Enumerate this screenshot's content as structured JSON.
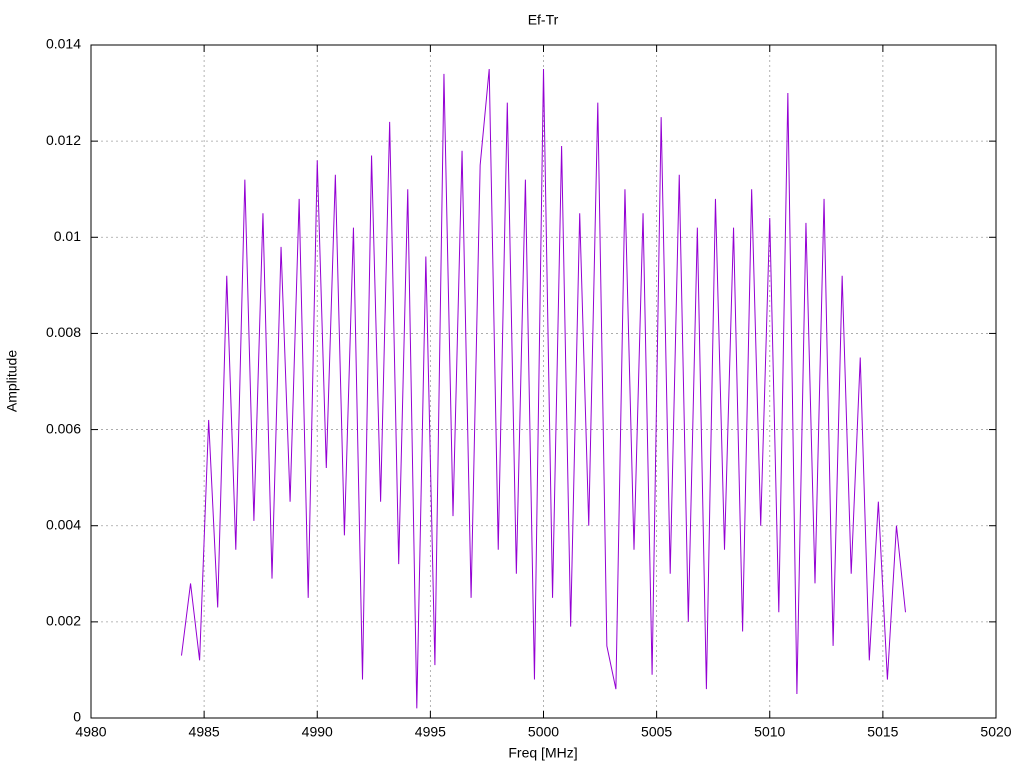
{
  "chart_data": {
    "type": "line",
    "title": "Ef-Tr",
    "x_label": "Freq [MHz]",
    "y_label": "Amplitude",
    "x": [
      4984.0,
      4984.4,
      4984.8,
      4985.2,
      4985.6,
      4986.0,
      4986.4,
      4986.8,
      4987.2,
      4987.6,
      4988.0,
      4988.4,
      4988.8,
      4989.2,
      4989.6,
      4990.0,
      4990.4,
      4990.8,
      4991.2,
      4991.6,
      4992.0,
      4992.4,
      4992.8,
      4993.2,
      4993.6,
      4994.0,
      4994.4,
      4994.8,
      4995.2,
      4995.6,
      4996.0,
      4996.4,
      4996.8,
      4997.2,
      4997.6,
      4998.0,
      4998.4,
      4998.8,
      4999.2,
      4999.6,
      5000.0,
      5000.4,
      5000.8,
      5001.2,
      5001.6,
      5002.0,
      5002.4,
      5002.8,
      5003.2,
      5003.6,
      5004.0,
      5004.4,
      5004.8,
      5005.2,
      5005.6,
      5006.0,
      5006.4,
      5006.8,
      5007.2,
      5007.6,
      5008.0,
      5008.4,
      5008.8,
      5009.2,
      5009.6,
      5010.0,
      5010.4,
      5010.8,
      5011.2,
      5011.6,
      5012.0,
      5012.4,
      5012.8,
      5013.2,
      5013.6,
      5014.0,
      5014.4,
      5014.8,
      5015.2,
      5015.6,
      5016.0
    ],
    "series": [
      {
        "color": "#9400d3",
        "values": [
          0.0013,
          0.0028,
          0.0012,
          0.0062,
          0.0023,
          0.0092,
          0.0035,
          0.0112,
          0.0041,
          0.0105,
          0.0029,
          0.0098,
          0.0045,
          0.0108,
          0.0025,
          0.0116,
          0.0052,
          0.0113,
          0.0038,
          0.0102,
          0.0008,
          0.0117,
          0.0045,
          0.0124,
          0.0032,
          0.011,
          0.0002,
          0.0096,
          0.0011,
          0.0134,
          0.0042,
          0.0118,
          0.0025,
          0.0115,
          0.0135,
          0.0035,
          0.0128,
          0.003,
          0.0112,
          0.0008,
          0.0135,
          0.0025,
          0.0119,
          0.0019,
          0.0105,
          0.004,
          0.0128,
          0.0015,
          0.0006,
          0.011,
          0.0035,
          0.0105,
          0.0009,
          0.0125,
          0.003,
          0.0113,
          0.002,
          0.0102,
          0.0006,
          0.0108,
          0.0035,
          0.0102,
          0.0018,
          0.011,
          0.004,
          0.0104,
          0.0022,
          0.013,
          0.0005,
          0.0103,
          0.0028,
          0.0108,
          0.0015,
          0.0092,
          0.003,
          0.0075,
          0.0012,
          0.0045,
          0.0008,
          0.004,
          0.0022
        ]
      }
    ],
    "xlim": [
      4980,
      5020
    ],
    "xticks": [
      4980,
      4985,
      4990,
      4995,
      5000,
      5005,
      5010,
      5015,
      5020
    ],
    "ylim": [
      0,
      0.014
    ],
    "yticks": [
      0,
      0.002,
      0.004,
      0.006,
      0.008,
      0.01,
      0.012,
      0.014
    ],
    "grid": true
  }
}
